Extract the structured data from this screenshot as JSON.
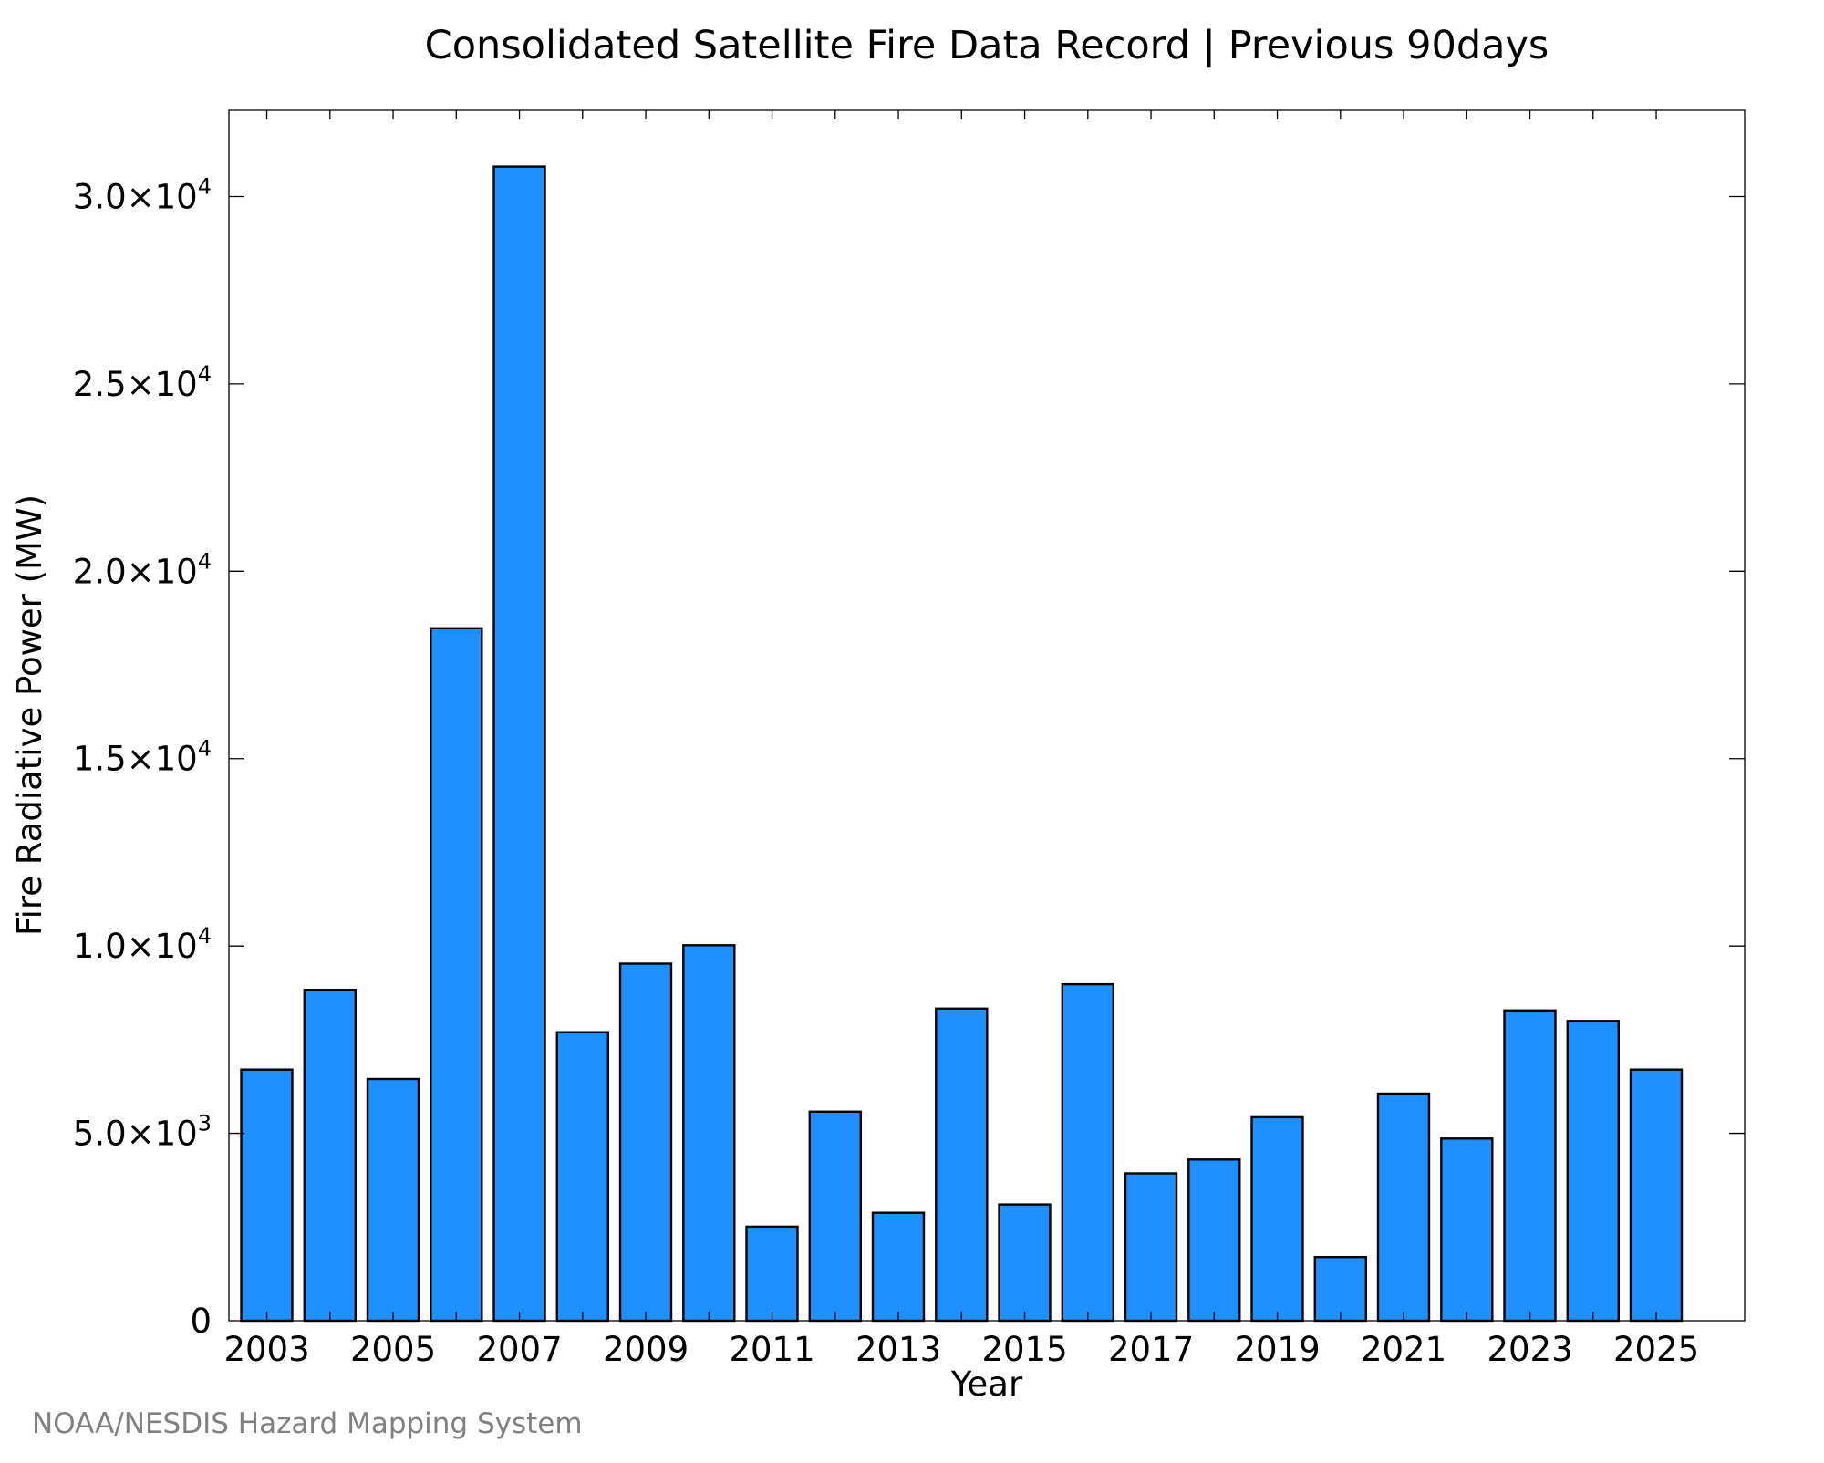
{
  "chart_data": {
    "type": "bar",
    "title": "Consolidated Satellite Fire Data Record | Previous 90days",
    "xlabel": "Year",
    "ylabel": "Fire Radiative Power (MW)",
    "categories": [
      "2003",
      "2004",
      "2005",
      "2006",
      "2007",
      "2008",
      "2009",
      "2010",
      "2011",
      "2012",
      "2013",
      "2014",
      "2015",
      "2016",
      "2017",
      "2018",
      "2019",
      "2020",
      "2021",
      "2022",
      "2023",
      "2024",
      "2025"
    ],
    "values": [
      6700,
      8830,
      6450,
      18480,
      30800,
      7700,
      9530,
      10020,
      2510,
      5580,
      2880,
      8330,
      3100,
      8980,
      3930,
      4300,
      5430,
      1700,
      6060,
      4860,
      8280,
      8000,
      6700
    ],
    "x_tick_labels": [
      "2003",
      "2005",
      "2007",
      "2009",
      "2011",
      "2013",
      "2015",
      "2017",
      "2019",
      "2021",
      "2023",
      "2025"
    ],
    "y_ticks": [
      {
        "value": 0,
        "mantissa": "0",
        "exponent": ""
      },
      {
        "value": 5000,
        "mantissa": "5.0×10",
        "exponent": "3"
      },
      {
        "value": 10000,
        "mantissa": "1.0×10",
        "exponent": "4"
      },
      {
        "value": 15000,
        "mantissa": "1.5×10",
        "exponent": "4"
      },
      {
        "value": 20000,
        "mantissa": "2.0×10",
        "exponent": "4"
      },
      {
        "value": 25000,
        "mantissa": "2.5×10",
        "exponent": "4"
      },
      {
        "value": 30000,
        "mantissa": "3.0×10",
        "exponent": "4"
      }
    ],
    "ylim": [
      0,
      32300
    ],
    "xlim": [
      2002.4,
      2026.4
    ],
    "bar_color": "#1E90FF",
    "bar_edge_color": "#000000",
    "grid": false,
    "legend": "none"
  },
  "credit": "NOAA/NESDIS Hazard Mapping System",
  "credit_color": "#808080"
}
